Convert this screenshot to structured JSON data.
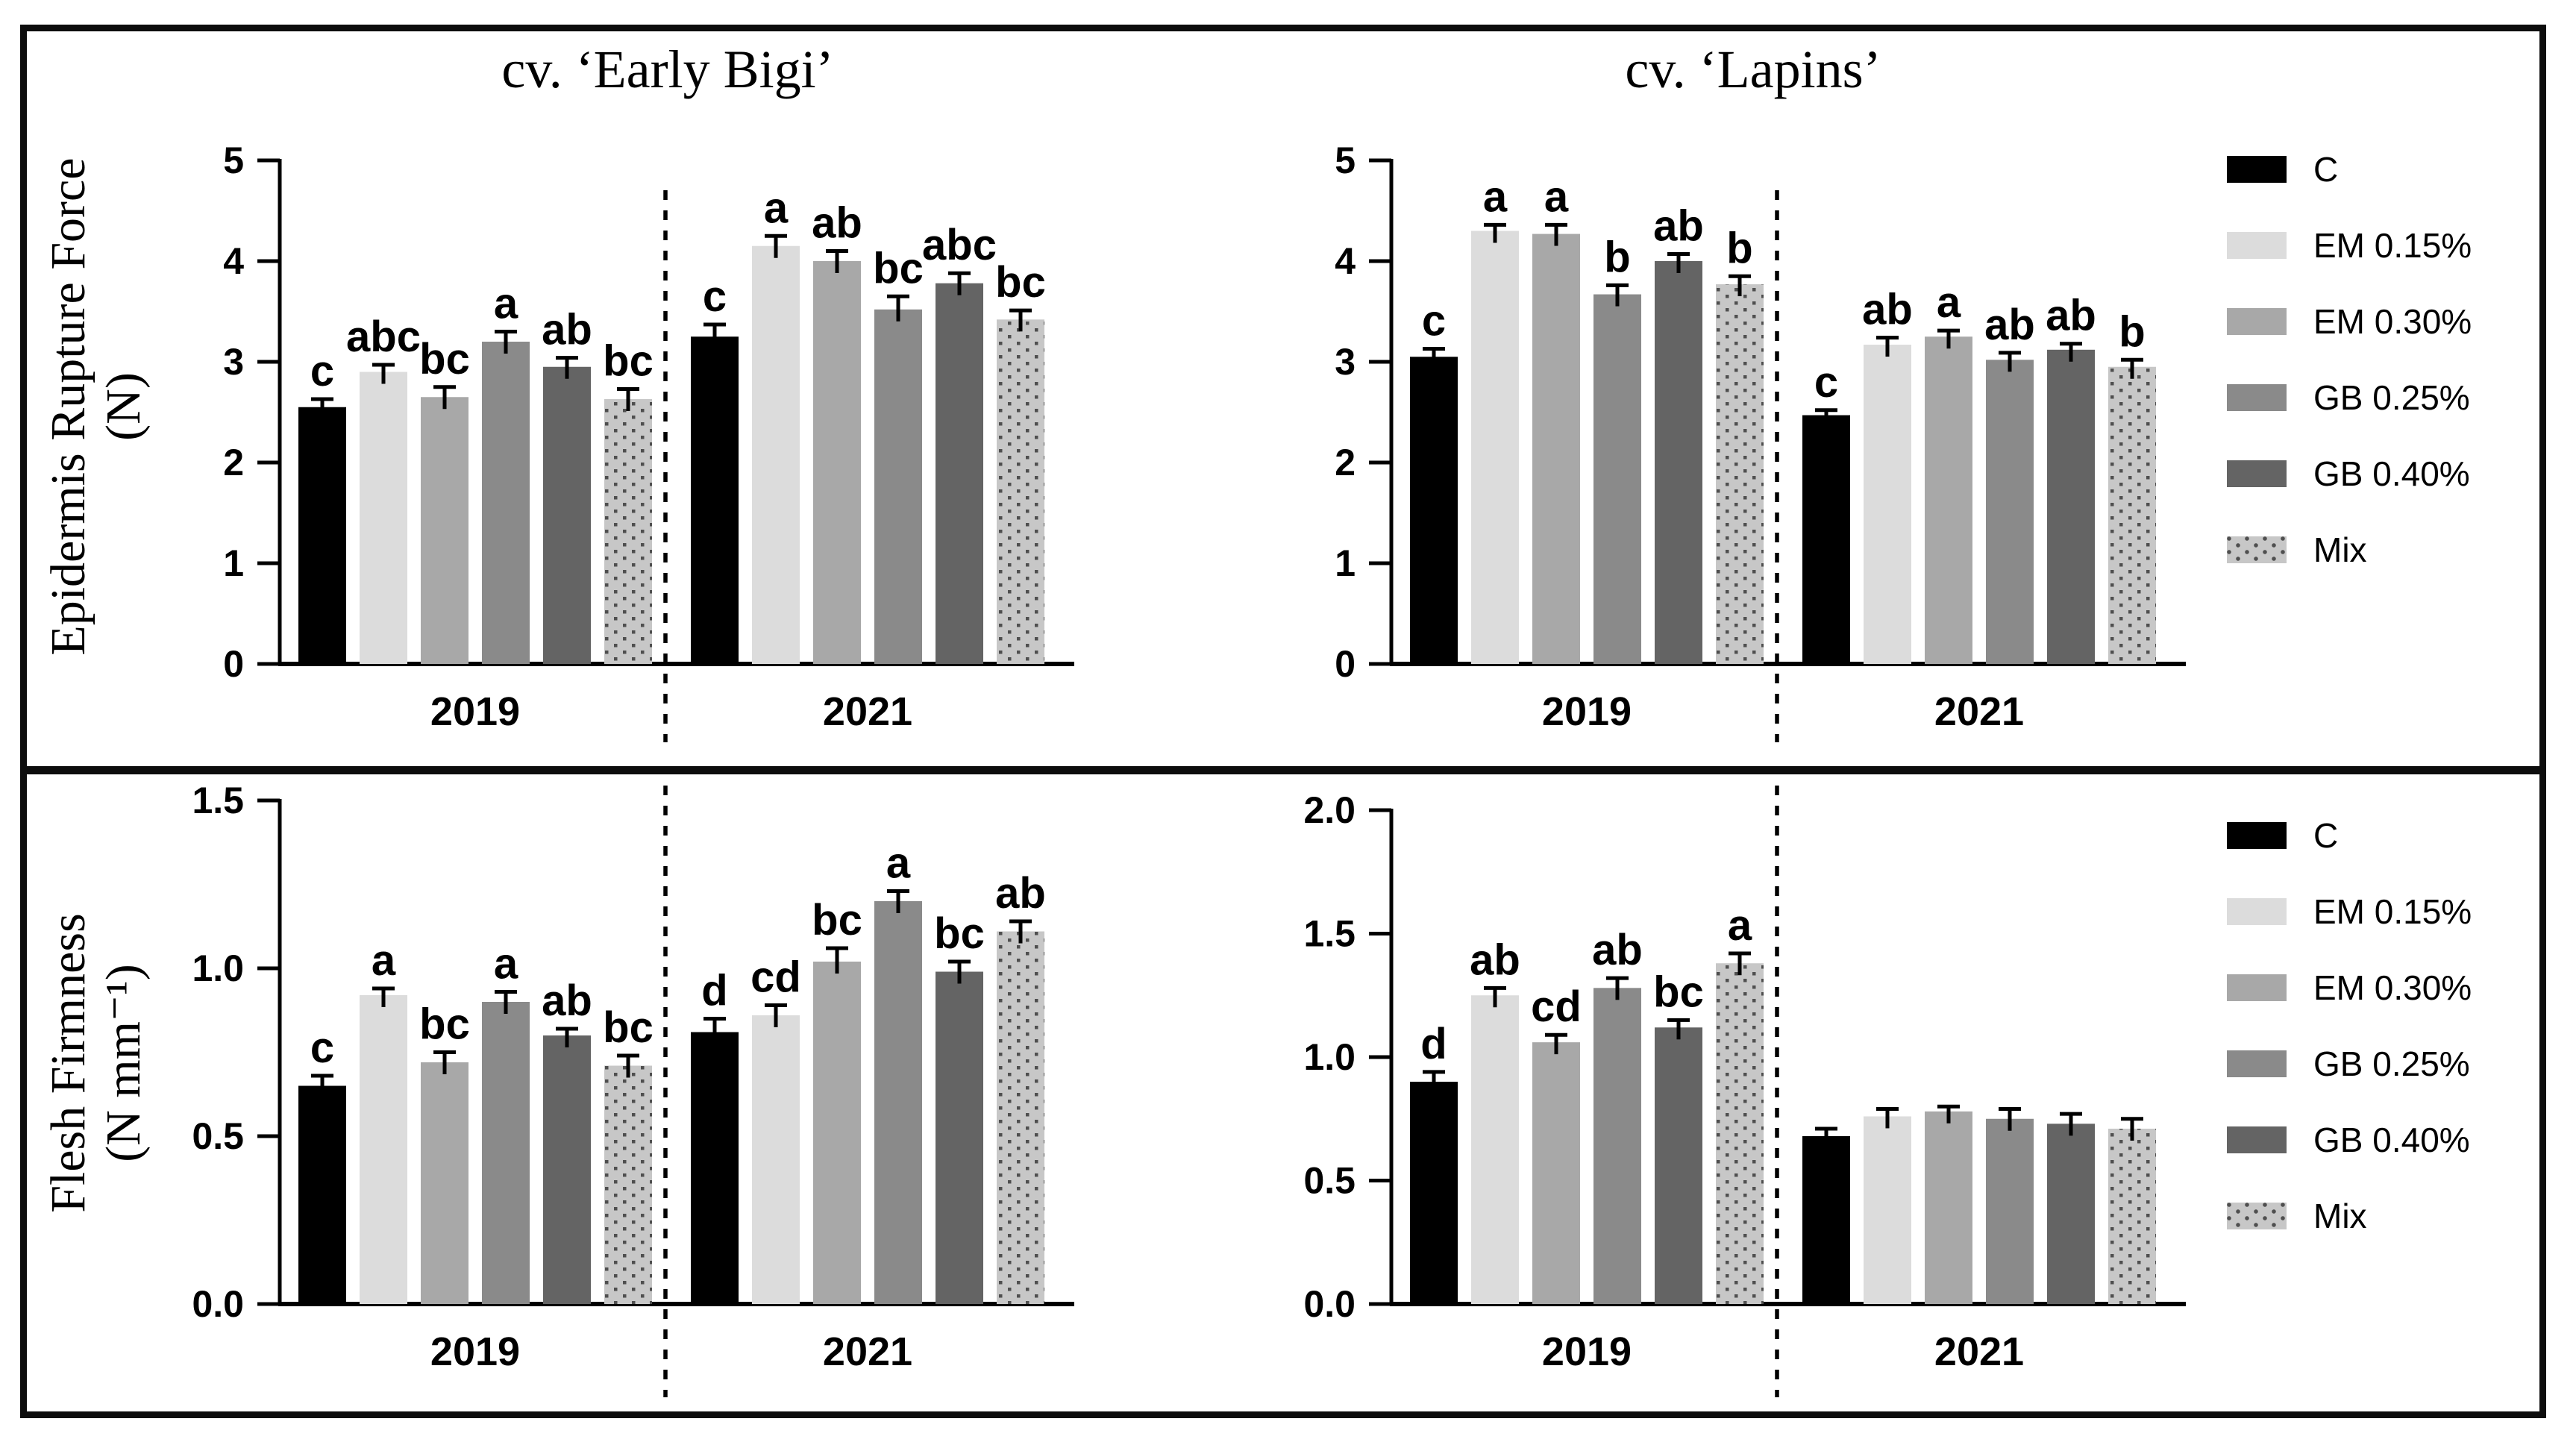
{
  "figure": {
    "titles": {
      "left": "cv. ‘Early Bigi’",
      "right": "cv. ‘Lapins’"
    },
    "rows": [
      {
        "ylabel": "Epidermis Rupture Force",
        "ylabel_units": "(N)"
      },
      {
        "ylabel": "Flesh Firmness",
        "ylabel_units": "(N mm⁻¹)"
      }
    ]
  },
  "legend": {
    "position": "right",
    "entries": [
      {
        "label": "C",
        "color": "#000000"
      },
      {
        "label": "EM 0.15%",
        "color": "#dcdcdc"
      },
      {
        "label": "EM 0.30%",
        "color": "#a8a8a8"
      },
      {
        "label": "GB 0.25%",
        "color": "#8a8a8a"
      },
      {
        "label": "GB 0.40%",
        "color": "#646464"
      },
      {
        "label": "Mix",
        "color": "#c7c7c7",
        "pattern": "dots",
        "dot_color": "#4f4f4f"
      }
    ]
  },
  "chart_data": [
    {
      "id": "panel-a",
      "type": "bar",
      "position": "top-left",
      "title": "cv. ‘Early Bigi’",
      "ylabel": "Epidermis Rupture Force (N)",
      "ylim": [
        0,
        5
      ],
      "yticks": [
        "0",
        "1",
        "2",
        "3",
        "4",
        "5"
      ],
      "grid": false,
      "categories": [
        "2019",
        "2021"
      ],
      "series": [
        {
          "name": "C",
          "values": [
            2.55,
            3.25
          ],
          "errors": [
            0.08,
            0.12
          ],
          "letters": [
            "c",
            "c"
          ]
        },
        {
          "name": "EM 0.15%",
          "values": [
            2.9,
            4.15
          ],
          "errors": [
            0.07,
            0.1
          ],
          "letters": [
            "abc",
            "a"
          ]
        },
        {
          "name": "EM 0.30%",
          "values": [
            2.65,
            4.0
          ],
          "errors": [
            0.1,
            0.1
          ],
          "letters": [
            "bc",
            "ab"
          ]
        },
        {
          "name": "GB 0.25%",
          "values": [
            3.2,
            3.52
          ],
          "errors": [
            0.1,
            0.13
          ],
          "letters": [
            "a",
            "bc"
          ]
        },
        {
          "name": "GB 0.40%",
          "values": [
            2.95,
            3.78
          ],
          "errors": [
            0.09,
            0.1
          ],
          "letters": [
            "ab",
            "abc"
          ]
        },
        {
          "name": "Mix",
          "values": [
            2.63,
            3.42
          ],
          "errors": [
            0.1,
            0.09
          ],
          "letters": [
            "bc",
            "bc"
          ]
        }
      ]
    },
    {
      "id": "panel-b",
      "type": "bar",
      "position": "top-right",
      "title": "cv. ‘Lapins’",
      "ylabel": "Epidermis Rupture Force (N)",
      "ylim": [
        0,
        5
      ],
      "yticks": [
        "0",
        "1",
        "2",
        "3",
        "4",
        "5"
      ],
      "grid": false,
      "categories": [
        "2019",
        "2021"
      ],
      "series": [
        {
          "name": "C",
          "values": [
            3.05,
            2.47
          ],
          "errors": [
            0.08,
            0.05
          ],
          "letters": [
            "c",
            "c"
          ]
        },
        {
          "name": "EM 0.15%",
          "values": [
            4.3,
            3.17
          ],
          "errors": [
            0.06,
            0.07
          ],
          "letters": [
            "a",
            "ab"
          ]
        },
        {
          "name": "EM 0.30%",
          "values": [
            4.27,
            3.25
          ],
          "errors": [
            0.09,
            0.06
          ],
          "letters": [
            "a",
            "a"
          ]
        },
        {
          "name": "GB 0.25%",
          "values": [
            3.67,
            3.02
          ],
          "errors": [
            0.09,
            0.07
          ],
          "letters": [
            "b",
            "ab"
          ]
        },
        {
          "name": "GB 0.40%",
          "values": [
            4.0,
            3.12
          ],
          "errors": [
            0.07,
            0.06
          ],
          "letters": [
            "ab",
            "ab"
          ]
        },
        {
          "name": "Mix",
          "values": [
            3.77,
            2.95
          ],
          "errors": [
            0.08,
            0.07
          ],
          "letters": [
            "b",
            "b"
          ]
        }
      ]
    },
    {
      "id": "panel-c",
      "type": "bar",
      "position": "bottom-left",
      "title": "",
      "ylabel": "Flesh Firmness (N mm⁻¹)",
      "ylim": [
        0,
        1.5
      ],
      "yticks": [
        "0.0",
        "0.5",
        "1.0",
        "1.5"
      ],
      "grid": false,
      "categories": [
        "2019",
        "2021"
      ],
      "series": [
        {
          "name": "C",
          "values": [
            0.65,
            0.81
          ],
          "errors": [
            0.03,
            0.04
          ],
          "letters": [
            "c",
            "d"
          ]
        },
        {
          "name": "EM 0.15%",
          "values": [
            0.92,
            0.86
          ],
          "errors": [
            0.02,
            0.03
          ],
          "letters": [
            "a",
            "cd"
          ]
        },
        {
          "name": "EM 0.30%",
          "values": [
            0.72,
            1.02
          ],
          "errors": [
            0.03,
            0.04
          ],
          "letters": [
            "bc",
            "bc"
          ]
        },
        {
          "name": "GB 0.25%",
          "values": [
            0.9,
            1.2
          ],
          "errors": [
            0.03,
            0.03
          ],
          "letters": [
            "a",
            "a"
          ]
        },
        {
          "name": "GB 0.40%",
          "values": [
            0.8,
            0.99
          ],
          "errors": [
            0.02,
            0.03
          ],
          "letters": [
            "ab",
            "bc"
          ]
        },
        {
          "name": "Mix",
          "values": [
            0.71,
            1.11
          ],
          "errors": [
            0.03,
            0.03
          ],
          "letters": [
            "bc",
            "ab"
          ]
        }
      ]
    },
    {
      "id": "panel-d",
      "type": "bar",
      "position": "bottom-right",
      "title": "",
      "ylabel": "Flesh Firmness (N mm⁻¹)",
      "ylim": [
        0,
        2.0
      ],
      "yticks": [
        "0.0",
        "0.5",
        "1.0",
        "1.5",
        "2.0"
      ],
      "grid": false,
      "categories": [
        "2019",
        "2021"
      ],
      "series": [
        {
          "name": "C",
          "values": [
            0.9,
            0.68
          ],
          "errors": [
            0.04,
            0.03
          ],
          "letters": [
            "d",
            ""
          ]
        },
        {
          "name": "EM 0.15%",
          "values": [
            1.25,
            0.76
          ],
          "errors": [
            0.03,
            0.03
          ],
          "letters": [
            "ab",
            ""
          ]
        },
        {
          "name": "EM 0.30%",
          "values": [
            1.06,
            0.78
          ],
          "errors": [
            0.03,
            0.02
          ],
          "letters": [
            "cd",
            ""
          ]
        },
        {
          "name": "GB 0.25%",
          "values": [
            1.28,
            0.75
          ],
          "errors": [
            0.04,
            0.04
          ],
          "letters": [
            "ab",
            ""
          ]
        },
        {
          "name": "GB 0.40%",
          "values": [
            1.12,
            0.73
          ],
          "errors": [
            0.03,
            0.04
          ],
          "letters": [
            "bc",
            ""
          ]
        },
        {
          "name": "Mix",
          "values": [
            1.38,
            0.71
          ],
          "errors": [
            0.04,
            0.04
          ],
          "letters": [
            "a",
            ""
          ]
        }
      ]
    }
  ]
}
